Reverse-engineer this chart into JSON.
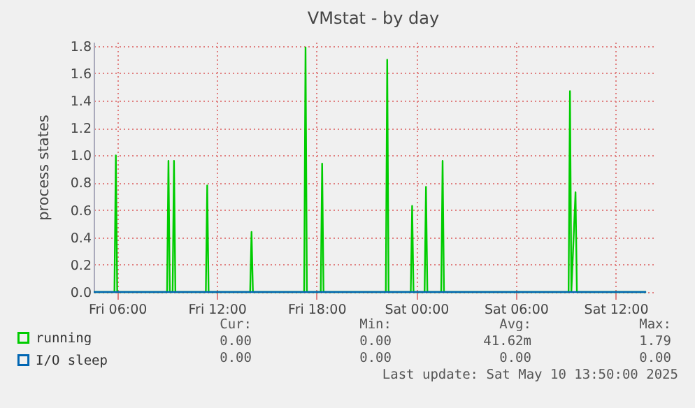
{
  "chart_data": {
    "type": "line",
    "title": "VMstat - by day",
    "ylabel": "process states",
    "x": [
      "2025-05-09T04:35",
      "2025-05-09T05:50",
      "2025-05-09T05:55",
      "2025-05-09T06:00",
      "2025-05-09T09:00",
      "2025-05-09T09:05",
      "2025-05-09T09:10",
      "2025-05-09T09:20",
      "2025-05-09T09:25",
      "2025-05-09T09:30",
      "2025-05-09T11:20",
      "2025-05-09T11:25",
      "2025-05-09T11:30",
      "2025-05-09T14:00",
      "2025-05-09T14:05",
      "2025-05-09T14:10",
      "2025-05-09T17:15",
      "2025-05-09T17:20",
      "2025-05-09T17:25",
      "2025-05-09T18:15",
      "2025-05-09T18:20",
      "2025-05-09T18:25",
      "2025-05-09T22:10",
      "2025-05-09T22:15",
      "2025-05-09T22:20",
      "2025-05-09T23:40",
      "2025-05-09T23:45",
      "2025-05-09T23:50",
      "2025-05-10T00:30",
      "2025-05-10T00:35",
      "2025-05-10T00:40",
      "2025-05-10T01:30",
      "2025-05-10T01:35",
      "2025-05-10T01:40",
      "2025-05-10T09:10",
      "2025-05-10T09:15",
      "2025-05-10T09:20",
      "2025-05-10T09:35",
      "2025-05-10T09:40",
      "2025-05-10T13:50"
    ],
    "series": [
      {
        "name": "running",
        "color": "#00cc00",
        "values": [
          0,
          0,
          1.0,
          0,
          0,
          0.96,
          0,
          0,
          0.96,
          0,
          0,
          0.78,
          0,
          0,
          0.44,
          0,
          0,
          1.79,
          0,
          0,
          0.94,
          0,
          0,
          1.7,
          0,
          0,
          0.63,
          0,
          0,
          0.77,
          0,
          0,
          0.96,
          0,
          0,
          1.47,
          0,
          0.73,
          0,
          0
        ]
      },
      {
        "name": "I/O sleep",
        "color": "#0066b3",
        "x": [
          "2025-05-09T04:35",
          "2025-05-10T13:50"
        ],
        "values": [
          0,
          0
        ]
      }
    ],
    "xlim": [
      "2025-05-09T04:35",
      "2025-05-10T14:15"
    ],
    "xticks": [
      {
        "value": "2025-05-09T06:00",
        "label": "Fri 06:00"
      },
      {
        "value": "2025-05-09T12:00",
        "label": "Fri 12:00"
      },
      {
        "value": "2025-05-09T18:00",
        "label": "Fri 18:00"
      },
      {
        "value": "2025-05-10T00:00",
        "label": "Sat 00:00"
      },
      {
        "value": "2025-05-10T06:00",
        "label": "Sat 06:00"
      },
      {
        "value": "2025-05-10T12:00",
        "label": "Sat 12:00"
      }
    ],
    "ylim": [
      0,
      1.83
    ],
    "yticks": [
      {
        "value": 0,
        "label": "0.0"
      },
      {
        "value": 0.2,
        "label": "0.2"
      },
      {
        "value": 0.4,
        "label": "0.4"
      },
      {
        "value": 0.6,
        "label": "0.6"
      },
      {
        "value": 0.8,
        "label": "0.8"
      },
      {
        "value": 1,
        "label": "1.0"
      },
      {
        "value": 1.2,
        "label": "1.2"
      },
      {
        "value": 1.4,
        "label": "1.4"
      },
      {
        "value": 1.6,
        "label": "1.6"
      },
      {
        "value": 1.8,
        "label": "1.8"
      }
    ],
    "grid": true,
    "legend": "bottom left",
    "annotations": [
      "Cur:",
      "Min:",
      "Avg:",
      "Max:",
      "0.00",
      "0.00",
      "41.62m",
      "1.79",
      "0.00",
      "0.00",
      "0.00",
      "0.00",
      "Last update: Sat May 10 13:50:00 2025"
    ]
  }
}
